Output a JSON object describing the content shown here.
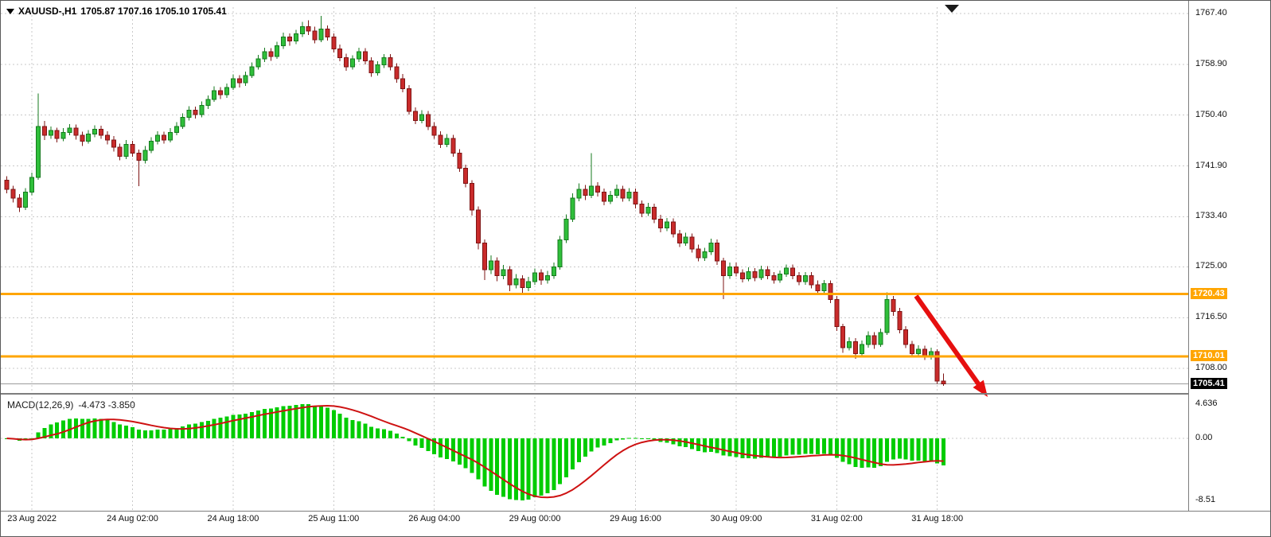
{
  "header": {
    "symbol_period": "XAUUSD-,H1",
    "ohlc": "1705.87 1707.16 1705.10 1705.41"
  },
  "macd_panel": {
    "label": "MACD(12,26,9)",
    "values": "-4.473 -3.850"
  },
  "chart_data": [
    {
      "type": "candlestick",
      "symbol": "XAUUSD-",
      "timeframe": "H1",
      "current_bar": {
        "open": 1705.87,
        "high": 1707.16,
        "low": 1705.1,
        "close": 1705.41
      },
      "ylim": [
        1704.0,
        1768.5
      ],
      "grid": true,
      "colors": {
        "up": "#2fbf3a",
        "up_border": "#157a1e",
        "down": "#c92b2b",
        "down_border": "#7e1414",
        "background": "#ffffff",
        "grid": "#c9c9c9"
      },
      "y_axis": {
        "side": "right",
        "ticks": [
          {
            "text": "1767.40",
            "price": 1767.4
          },
          {
            "text": "1758.90",
            "price": 1758.9
          },
          {
            "text": "1750.40",
            "price": 1750.4
          },
          {
            "text": "1741.90",
            "price": 1741.9
          },
          {
            "text": "1733.40",
            "price": 1733.4
          },
          {
            "text": "1725.00",
            "price": 1725.0
          },
          {
            "text": "1716.50",
            "price": 1716.5
          },
          {
            "text": "1708.00",
            "price": 1708.0
          }
        ]
      },
      "x_axis": {
        "labels": [
          {
            "text": "23 Aug 2022",
            "index": 4
          },
          {
            "text": "24 Aug 02:00",
            "index": 20
          },
          {
            "text": "24 Aug 18:00",
            "index": 36
          },
          {
            "text": "25 Aug 11:00",
            "index": 52
          },
          {
            "text": "26 Aug 04:00",
            "index": 68
          },
          {
            "text": "29 Aug 00:00",
            "index": 84
          },
          {
            "text": "29 Aug 16:00",
            "index": 100
          },
          {
            "text": "30 Aug 09:00",
            "index": 116
          },
          {
            "text": "31 Aug 02:00",
            "index": 132
          },
          {
            "text": "31 Aug 18:00",
            "index": 148
          }
        ]
      },
      "horizontal_lines": [
        {
          "label": "1720.43",
          "price": 1720.43,
          "color": "#FFA500",
          "width": 3
        },
        {
          "label": "1710.01",
          "price": 1710.01,
          "color": "#FFA500",
          "width": 3
        }
      ],
      "current_price": {
        "label": "1705.41",
        "value": 1705.41,
        "badge_bg": "#000000",
        "badge_text": "#ffffff"
      },
      "candles": [
        [
          1739.5,
          1740.2,
          1737.3,
          1738.0
        ],
        [
          1738.0,
          1738.6,
          1735.8,
          1736.5
        ],
        [
          1736.5,
          1737.2,
          1734.2,
          1735.0
        ],
        [
          1735.0,
          1738.2,
          1734.5,
          1737.5
        ],
        [
          1737.5,
          1740.8,
          1737.0,
          1740.0
        ],
        [
          1740.0,
          1754.0,
          1739.6,
          1748.5
        ],
        [
          1748.5,
          1749.4,
          1746.2,
          1747.0
        ],
        [
          1747.0,
          1748.5,
          1746.4,
          1747.8
        ],
        [
          1747.8,
          1748.3,
          1745.8,
          1746.5
        ],
        [
          1746.5,
          1748.2,
          1746.0,
          1747.5
        ],
        [
          1747.5,
          1748.9,
          1747.0,
          1748.2
        ],
        [
          1748.2,
          1748.8,
          1746.3,
          1747.0
        ],
        [
          1747.0,
          1747.6,
          1745.2,
          1746.0
        ],
        [
          1746.0,
          1747.9,
          1745.6,
          1747.2
        ],
        [
          1747.2,
          1748.7,
          1746.7,
          1748.0
        ],
        [
          1748.0,
          1748.6,
          1746.4,
          1747.0
        ],
        [
          1747.0,
          1747.7,
          1745.5,
          1746.2
        ],
        [
          1746.2,
          1746.9,
          1744.3,
          1745.0
        ],
        [
          1745.0,
          1745.6,
          1742.8,
          1743.5
        ],
        [
          1743.5,
          1746.2,
          1743.0,
          1745.5
        ],
        [
          1745.5,
          1746.1,
          1743.4,
          1744.0
        ],
        [
          1744.0,
          1744.6,
          1738.5,
          1742.8
        ],
        [
          1742.8,
          1745.2,
          1742.3,
          1744.5
        ],
        [
          1744.5,
          1746.7,
          1744.0,
          1746.0
        ],
        [
          1746.0,
          1747.7,
          1745.5,
          1747.0
        ],
        [
          1747.0,
          1747.6,
          1745.6,
          1746.2
        ],
        [
          1746.2,
          1748.2,
          1745.8,
          1747.5
        ],
        [
          1747.5,
          1749.2,
          1747.0,
          1748.5
        ],
        [
          1748.5,
          1750.7,
          1748.1,
          1750.0
        ],
        [
          1750.0,
          1751.9,
          1749.5,
          1751.2
        ],
        [
          1751.2,
          1751.8,
          1749.8,
          1750.5
        ],
        [
          1750.5,
          1752.7,
          1750.0,
          1752.0
        ],
        [
          1752.0,
          1753.7,
          1751.4,
          1753.0
        ],
        [
          1753.0,
          1755.2,
          1752.6,
          1754.5
        ],
        [
          1754.5,
          1755.1,
          1753.1,
          1753.8
        ],
        [
          1753.8,
          1755.7,
          1753.3,
          1755.0
        ],
        [
          1755.0,
          1757.2,
          1754.6,
          1756.5
        ],
        [
          1756.5,
          1757.1,
          1755.0,
          1755.8
        ],
        [
          1755.8,
          1757.7,
          1755.3,
          1757.0
        ],
        [
          1757.0,
          1759.2,
          1756.6,
          1758.5
        ],
        [
          1758.5,
          1760.5,
          1758.0,
          1759.8
        ],
        [
          1759.8,
          1761.7,
          1759.3,
          1761.0
        ],
        [
          1761.0,
          1761.6,
          1759.5,
          1760.2
        ],
        [
          1760.2,
          1762.7,
          1759.8,
          1762.0
        ],
        [
          1762.0,
          1764.2,
          1761.5,
          1763.5
        ],
        [
          1763.5,
          1764.1,
          1762.0,
          1762.8
        ],
        [
          1762.8,
          1764.7,
          1762.3,
          1764.0
        ],
        [
          1764.0,
          1766.0,
          1763.5,
          1765.2
        ],
        [
          1765.2,
          1766.3,
          1763.8,
          1764.5
        ],
        [
          1764.5,
          1765.2,
          1762.4,
          1763.0
        ],
        [
          1763.0,
          1767.0,
          1762.6,
          1764.8
        ],
        [
          1764.8,
          1765.4,
          1762.9,
          1763.5
        ],
        [
          1763.5,
          1764.1,
          1760.9,
          1761.5
        ],
        [
          1761.5,
          1762.2,
          1759.4,
          1760.0
        ],
        [
          1760.0,
          1760.7,
          1757.8,
          1758.5
        ],
        [
          1758.5,
          1760.4,
          1758.0,
          1759.8
        ],
        [
          1759.8,
          1761.7,
          1759.3,
          1761.0
        ],
        [
          1761.0,
          1761.6,
          1758.9,
          1759.5
        ],
        [
          1759.5,
          1760.1,
          1756.8,
          1757.5
        ],
        [
          1757.5,
          1759.4,
          1757.0,
          1758.8
        ],
        [
          1758.8,
          1760.6,
          1758.3,
          1760.0
        ],
        [
          1760.0,
          1760.6,
          1757.9,
          1758.5
        ],
        [
          1758.5,
          1759.1,
          1755.8,
          1756.5
        ],
        [
          1756.5,
          1757.3,
          1754.2,
          1754.8
        ],
        [
          1754.8,
          1755.4,
          1750.5,
          1751.0
        ],
        [
          1751.0,
          1751.7,
          1748.9,
          1749.5
        ],
        [
          1749.5,
          1751.2,
          1749.0,
          1750.5
        ],
        [
          1750.5,
          1751.1,
          1747.9,
          1748.5
        ],
        [
          1748.5,
          1749.2,
          1746.4,
          1747.0
        ],
        [
          1747.0,
          1747.7,
          1744.9,
          1745.5
        ],
        [
          1745.5,
          1747.2,
          1745.0,
          1746.5
        ],
        [
          1746.5,
          1747.1,
          1743.4,
          1744.0
        ],
        [
          1744.0,
          1744.7,
          1740.9,
          1741.5
        ],
        [
          1741.5,
          1742.1,
          1738.3,
          1739.0
        ],
        [
          1739.0,
          1739.5,
          1733.6,
          1734.5
        ],
        [
          1734.5,
          1735.1,
          1727.9,
          1729.0
        ],
        [
          1729.0,
          1729.6,
          1722.8,
          1724.5
        ],
        [
          1724.5,
          1726.9,
          1723.8,
          1726.0
        ],
        [
          1726.0,
          1726.6,
          1722.6,
          1723.5
        ],
        [
          1723.5,
          1725.3,
          1722.9,
          1724.5
        ],
        [
          1724.5,
          1725.1,
          1720.9,
          1722.0
        ],
        [
          1722.0,
          1723.8,
          1721.4,
          1723.0
        ],
        [
          1723.0,
          1723.6,
          1720.6,
          1721.5
        ],
        [
          1721.5,
          1723.3,
          1720.9,
          1722.5
        ],
        [
          1722.5,
          1724.7,
          1722.0,
          1724.0
        ],
        [
          1724.0,
          1724.6,
          1722.0,
          1722.8
        ],
        [
          1722.8,
          1724.3,
          1722.2,
          1723.5
        ],
        [
          1723.5,
          1725.7,
          1723.0,
          1725.0
        ],
        [
          1725.0,
          1730.2,
          1724.5,
          1729.5
        ],
        [
          1729.5,
          1733.8,
          1729.0,
          1733.0
        ],
        [
          1733.0,
          1737.3,
          1732.5,
          1736.5
        ],
        [
          1736.5,
          1739.0,
          1736.0,
          1738.0
        ],
        [
          1738.0,
          1738.7,
          1736.2,
          1737.0
        ],
        [
          1737.0,
          1744.0,
          1736.5,
          1738.5
        ],
        [
          1738.5,
          1739.2,
          1736.8,
          1737.5
        ],
        [
          1737.5,
          1738.1,
          1735.3,
          1736.0
        ],
        [
          1736.0,
          1737.7,
          1735.5,
          1737.0
        ],
        [
          1737.0,
          1738.8,
          1736.5,
          1738.0
        ],
        [
          1738.0,
          1738.6,
          1735.9,
          1736.5
        ],
        [
          1736.5,
          1738.2,
          1736.0,
          1737.5
        ],
        [
          1737.5,
          1738.1,
          1734.8,
          1735.5
        ],
        [
          1735.5,
          1736.1,
          1733.3,
          1734.0
        ],
        [
          1734.0,
          1735.7,
          1733.5,
          1735.0
        ],
        [
          1735.0,
          1735.6,
          1732.3,
          1733.0
        ],
        [
          1733.0,
          1733.7,
          1730.8,
          1731.5
        ],
        [
          1731.5,
          1733.2,
          1731.0,
          1732.5
        ],
        [
          1732.5,
          1733.1,
          1729.9,
          1730.5
        ],
        [
          1730.5,
          1731.2,
          1728.3,
          1729.0
        ],
        [
          1729.0,
          1730.7,
          1728.5,
          1730.0
        ],
        [
          1730.0,
          1730.6,
          1727.4,
          1728.0
        ],
        [
          1728.0,
          1728.7,
          1725.9,
          1726.5
        ],
        [
          1726.5,
          1728.2,
          1726.0,
          1727.5
        ],
        [
          1727.5,
          1729.7,
          1727.0,
          1729.0
        ],
        [
          1729.0,
          1729.6,
          1725.3,
          1726.0
        ],
        [
          1726.0,
          1726.5,
          1719.6,
          1723.5
        ],
        [
          1723.5,
          1725.7,
          1723.0,
          1725.0
        ],
        [
          1725.0,
          1725.7,
          1723.4,
          1724.0
        ],
        [
          1724.0,
          1724.6,
          1722.4,
          1723.0
        ],
        [
          1723.0,
          1724.9,
          1722.6,
          1724.2
        ],
        [
          1724.2,
          1724.8,
          1722.6,
          1723.2
        ],
        [
          1723.2,
          1725.2,
          1722.8,
          1724.5
        ],
        [
          1724.5,
          1725.1,
          1722.9,
          1723.5
        ],
        [
          1723.5,
          1724.1,
          1722.2,
          1722.8
        ],
        [
          1722.8,
          1724.4,
          1722.3,
          1723.8
        ],
        [
          1723.8,
          1725.4,
          1723.3,
          1724.8
        ],
        [
          1724.8,
          1725.4,
          1722.9,
          1723.5
        ],
        [
          1723.5,
          1724.1,
          1721.9,
          1722.5
        ],
        [
          1722.5,
          1724.1,
          1722.0,
          1723.5
        ],
        [
          1723.5,
          1724.1,
          1721.4,
          1722.0
        ],
        [
          1722.0,
          1722.7,
          1720.4,
          1721.0
        ],
        [
          1721.0,
          1722.8,
          1720.5,
          1722.2
        ],
        [
          1722.2,
          1722.7,
          1718.9,
          1719.5
        ],
        [
          1719.5,
          1720.1,
          1714.3,
          1715.0
        ],
        [
          1715.0,
          1715.5,
          1710.6,
          1711.5
        ],
        [
          1711.5,
          1713.2,
          1711.0,
          1712.5
        ],
        [
          1712.5,
          1713.1,
          1709.6,
          1710.5
        ],
        [
          1710.5,
          1712.7,
          1710.0,
          1712.0
        ],
        [
          1712.0,
          1714.2,
          1711.5,
          1713.5
        ],
        [
          1713.5,
          1714.1,
          1711.3,
          1712.0
        ],
        [
          1712.0,
          1714.7,
          1711.6,
          1714.0
        ],
        [
          1714.0,
          1720.7,
          1713.6,
          1719.5
        ],
        [
          1719.5,
          1720.1,
          1716.8,
          1717.5
        ],
        [
          1717.5,
          1718.1,
          1713.9,
          1714.5
        ],
        [
          1714.5,
          1715.1,
          1711.4,
          1712.0
        ],
        [
          1712.0,
          1712.6,
          1709.9,
          1710.5
        ],
        [
          1710.5,
          1711.9,
          1710.0,
          1711.2
        ],
        [
          1711.2,
          1711.8,
          1709.4,
          1710.0
        ],
        [
          1710.0,
          1711.5,
          1709.5,
          1710.8
        ],
        [
          1710.8,
          1711.2,
          1705.4,
          1705.9
        ],
        [
          1705.87,
          1707.16,
          1705.1,
          1705.41
        ]
      ]
    },
    {
      "type": "bar",
      "indicator": "MACD",
      "label": "MACD(12,26,9)",
      "params": {
        "fast_ema": 12,
        "slow_ema": 26,
        "signal_sma": 9
      },
      "current_values": {
        "macd": -4.473,
        "signal": -3.85
      },
      "y_ticks": [
        {
          "text": "4.636",
          "value": 4.636
        },
        {
          "text": "0.00",
          "value": 0.0
        },
        {
          "text": "-8.51",
          "value": -8.51
        }
      ],
      "histogram_color": "#00cc00",
      "signal_color": "#ce1212",
      "zero_line": true,
      "derived_from": "chart_data[0].candles closes"
    }
  ],
  "annotations": {
    "arrow": {
      "shape": "arrow",
      "color": "#e60f0f",
      "from": [
        1150,
        371
      ],
      "to": [
        1240,
        498
      ]
    }
  }
}
